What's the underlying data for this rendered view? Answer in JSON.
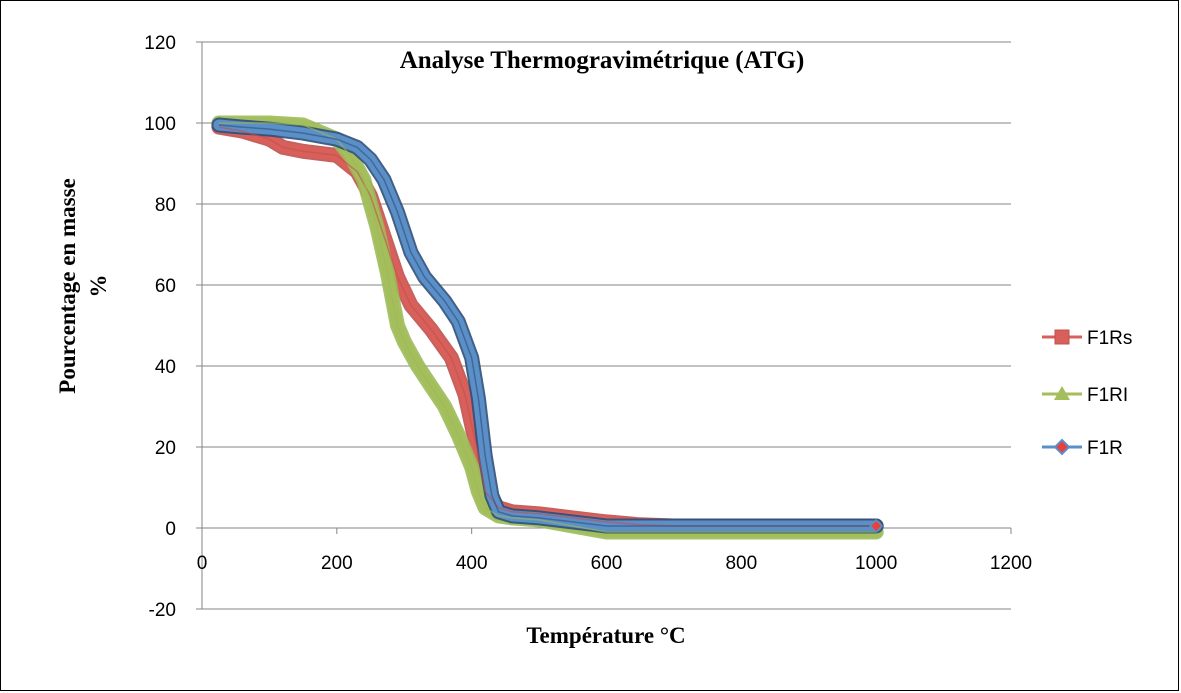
{
  "chart_data": {
    "type": "line",
    "title": "Analyse Thermogravimétrique (ATG)",
    "xlabel": "Température °C",
    "ylabel": "Pourcentage en masse",
    "ylabel_line2": "%",
    "xlim": [
      0,
      1200
    ],
    "ylim": [
      -20,
      120
    ],
    "x_ticks": [
      "0",
      "200",
      "400",
      "600",
      "800",
      "1000",
      "1200"
    ],
    "y_ticks": [
      "-20",
      "0",
      "20",
      "40",
      "60",
      "80",
      "100",
      "120"
    ],
    "x_tick_values": [
      0,
      200,
      400,
      600,
      800,
      1000,
      1200
    ],
    "y_tick_values": [
      -20,
      0,
      20,
      40,
      60,
      80,
      100,
      120
    ],
    "grid": "horizontal",
    "legend_position": "right",
    "series": [
      {
        "name": "F1Rs",
        "color": "#D9605A",
        "edge_color": "#C0504D",
        "marker": "square",
        "x": [
          25,
          60,
          100,
          120,
          150,
          200,
          230,
          250,
          270,
          290,
          310,
          340,
          370,
          390,
          410,
          420,
          440,
          460,
          500,
          550,
          600,
          650,
          700,
          800,
          900,
          1000
        ],
        "y": [
          99,
          98,
          96,
          94,
          93,
          92,
          88,
          82,
          72,
          62,
          55,
          49,
          42,
          33,
          18,
          9,
          5,
          4,
          3.5,
          2.5,
          1.5,
          0.8,
          0.5,
          0.5,
          0.5,
          0.5
        ]
      },
      {
        "name": "F1RI",
        "color": "#A4BE5C",
        "edge_color": "#9BBB59",
        "marker": "triangle",
        "x": [
          25,
          50,
          100,
          150,
          200,
          220,
          240,
          260,
          275,
          290,
          300,
          320,
          340,
          360,
          380,
          400,
          410,
          420,
          440,
          460,
          500,
          550,
          600,
          650,
          700,
          800,
          900,
          1000
        ],
        "y": [
          100,
          100,
          100,
          99.5,
          96,
          92,
          86,
          74,
          63,
          50,
          46,
          40,
          35,
          30,
          23,
          15,
          9,
          5,
          3,
          2.5,
          2,
          0.5,
          -1,
          -1,
          -1,
          -1,
          -1,
          -1
        ]
      },
      {
        "name": "F1R",
        "color": "#5B8FC8",
        "edge_color": "#2E4F7A",
        "marker": "diamond",
        "x": [
          25,
          60,
          100,
          150,
          200,
          230,
          250,
          270,
          290,
          310,
          330,
          360,
          380,
          400,
          410,
          420,
          430,
          440,
          460,
          500,
          550,
          600,
          650,
          700,
          800,
          900,
          1000
        ],
        "y": [
          99.5,
          99,
          98.5,
          97.5,
          96,
          94,
          91,
          86,
          78,
          68,
          62,
          56,
          51,
          42,
          32,
          18,
          8,
          4,
          3,
          2.5,
          1.5,
          0.5,
          0.5,
          0.5,
          0.5,
          0.5,
          0.5
        ]
      }
    ]
  }
}
